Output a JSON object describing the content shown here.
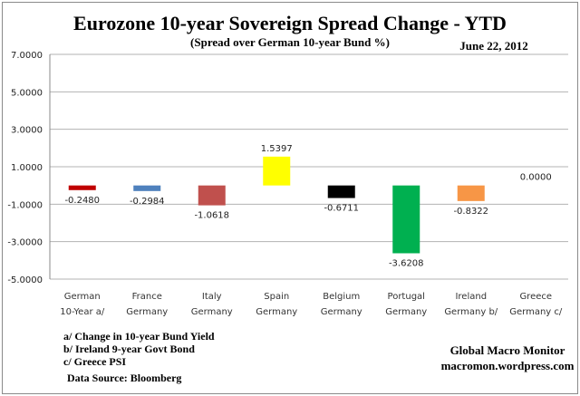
{
  "chart_data": {
    "type": "bar",
    "title": "Eurozone 10-year Sovereign Spread Change - YTD",
    "subtitle": "(Spread over German 10-year Bund %)",
    "date": "June 22,  2012",
    "categories": [
      [
        "German",
        "10-Year a/"
      ],
      [
        "France",
        "Germany"
      ],
      [
        "Italy",
        "Germany"
      ],
      [
        "Spain",
        "Germany"
      ],
      [
        "Belgium",
        "Germany"
      ],
      [
        "Portugal",
        "Germany"
      ],
      [
        "Ireland",
        "Germany b/"
      ],
      [
        "Greece",
        "Germany c/"
      ]
    ],
    "values": [
      -0.248,
      -0.2984,
      -1.0618,
      1.5397,
      -0.6711,
      -3.6208,
      -0.8322,
      0.0
    ],
    "value_labels": [
      "-0.2480",
      "-0.2984",
      "-1.0618",
      "1.5397",
      "-0.6711",
      "-3.6208",
      "-0.8322",
      "0.0000"
    ],
    "colors": [
      "#c00000",
      "#4f81bd",
      "#c0504d",
      "#ffff00",
      "#000000",
      "#00b050",
      "#f79646",
      "#7f7f7f"
    ],
    "ylim": [
      -5,
      7
    ],
    "yticks": [
      "7.0000",
      "5.0000",
      "3.0000",
      "1.0000",
      "-1.0000",
      "-3.0000",
      "-5.0000"
    ],
    "ytick_values": [
      7,
      5,
      3,
      1,
      -1,
      -3,
      -5
    ],
    "grid": true,
    "xlabel": "",
    "ylabel": ""
  },
  "notes": [
    "a/ Change in 10-year Bund Yield",
    "b/ Ireland 9-year Govt Bond",
    "c/ Greece PSI"
  ],
  "source": "Data Source:  Bloomberg",
  "credit": {
    "name": "Global Macro Monitor",
    "site": "macromon.wordpress.com"
  }
}
